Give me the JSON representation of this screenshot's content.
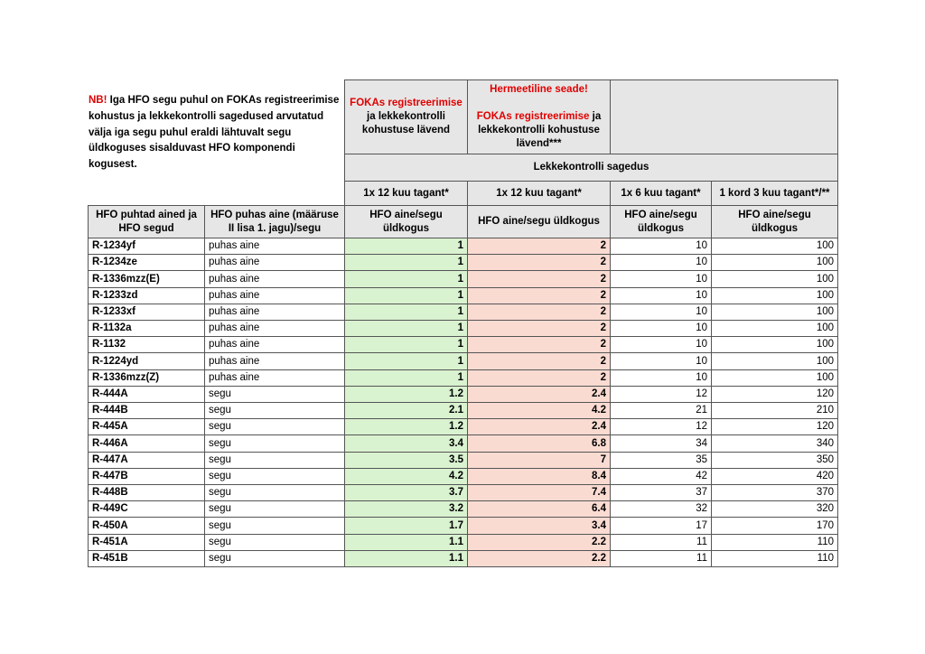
{
  "note": {
    "highlight": "NB!",
    "text": "Iga HFO segu puhul on FOKAs registreerimise kohustus ja lekkekontrolli sagedused arvutatud välja iga segu puhul eraldi lähtuvalt segu üldkoguses sisalduvast HFO komponendi kogusest."
  },
  "threshold_headers": [
    {
      "highlight": "FOKAs registreerimise",
      "text": "ja lekkekontrolli kohustuse lävend"
    },
    {
      "warning": "Hermeetiline seade!",
      "highlight": "FOKAs registreerimise",
      "text": "ja lekkekontrolli kohustuse lävend***"
    }
  ],
  "frequency_title": "Lekkekontrolli sagedus",
  "frequencies": [
    "1x 12 kuu tagant*",
    "1x 12 kuu tagant*",
    "1x 6 kuu tagant*",
    "1 kord 3 kuu tagant*/**"
  ],
  "columns": [
    "HFO puhtad ained ja HFO segud",
    "HFO puhas aine (määruse II lisa 1. jagu)/segu",
    "HFO aine/segu üldkogus",
    "HFO aine/segu üldkogus",
    "HFO aine/segu üldkogus",
    "HFO aine/segu üldkogus"
  ],
  "rows": [
    [
      "R-1234yf",
      "puhas aine",
      1,
      2,
      10,
      100
    ],
    [
      "R-1234ze",
      "puhas aine",
      1,
      2,
      10,
      100
    ],
    [
      "R-1336mzz(E)",
      "puhas aine",
      1,
      2,
      10,
      100
    ],
    [
      "R-1233zd",
      "puhas aine",
      1,
      2,
      10,
      100
    ],
    [
      "R-1233xf",
      "puhas aine",
      1,
      2,
      10,
      100
    ],
    [
      "R-1132a",
      "puhas aine",
      1,
      2,
      10,
      100
    ],
    [
      "R-1132",
      "puhas aine",
      1,
      2,
      10,
      100
    ],
    [
      "R-1224yd",
      "puhas aine",
      1,
      2,
      10,
      100
    ],
    [
      "R-1336mzz(Z)",
      "puhas aine",
      1,
      2,
      10,
      100
    ],
    [
      "R-444A",
      "segu",
      1.2,
      2.4,
      12,
      120
    ],
    [
      "R-444B",
      "segu",
      2.1,
      4.2,
      21,
      210
    ],
    [
      "R-445A",
      "segu",
      1.2,
      2.4,
      12,
      120
    ],
    [
      "R-446A",
      "segu",
      3.4,
      6.8,
      34,
      340
    ],
    [
      "R-447A",
      "segu",
      3.5,
      7,
      35,
      350
    ],
    [
      "R-447B",
      "segu",
      4.2,
      8.4,
      42,
      420
    ],
    [
      "R-448B",
      "segu",
      3.7,
      7.4,
      37,
      370
    ],
    [
      "R-449C",
      "segu",
      3.2,
      6.4,
      32,
      320
    ],
    [
      "R-450A",
      "segu",
      1.7,
      3.4,
      17,
      170
    ],
    [
      "R-451A",
      "segu",
      1.1,
      2.2,
      11,
      110
    ],
    [
      "R-451B",
      "segu",
      1.1,
      2.2,
      11,
      110
    ]
  ]
}
